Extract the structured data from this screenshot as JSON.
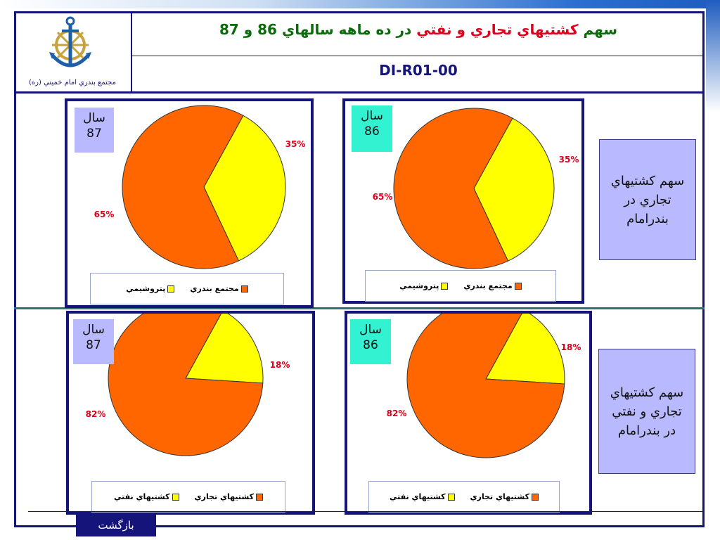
{
  "header": {
    "title_part1": "سهم ",
    "title_highlight": "كشتيهاي تجاري و نفتي",
    "title_part2": " در ده ماهه سالهاي 86 و 87",
    "code": "DI-R01-00",
    "logo_caption": "مجتمع بندري امام خميني (ره)"
  },
  "side_labels": {
    "top": "سهم كشتيهاي تجاري در بندرامام",
    "bottom": "سهم كشتيهاي تجاري و نفتي در بندرامام"
  },
  "back_label": "بازگشت",
  "colors": {
    "orange": "#ff6600",
    "yellow": "#ffff00",
    "navy": "#14147a",
    "year87": "#b9b9ff",
    "year86": "#33f2d2",
    "percent": "#e0001b"
  },
  "chart_data": [
    {
      "type": "pie",
      "year_label": "سال",
      "year": "87",
      "slices": [
        {
          "name": "مجتمع بندري",
          "value": 65,
          "label": "65%",
          "color": "#ff6600"
        },
        {
          "name": "پتروشيمي",
          "value": 35,
          "label": "35%",
          "color": "#ffff00"
        }
      ],
      "legend": [
        "مجتمع بندري",
        "پتروشيمي"
      ]
    },
    {
      "type": "pie",
      "year_label": "سال",
      "year": "86",
      "slices": [
        {
          "name": "مجتمع بندري",
          "value": 65,
          "label": "65%",
          "color": "#ff6600"
        },
        {
          "name": "پتروشيمي",
          "value": 35,
          "label": "35%",
          "color": "#ffff00"
        }
      ],
      "legend": [
        "مجتمع بندري",
        "پتروشيمي"
      ]
    },
    {
      "type": "pie",
      "year_label": "سال",
      "year": "87",
      "slices": [
        {
          "name": "كشتيهاي تجاري",
          "value": 82,
          "label": "82%",
          "color": "#ff6600"
        },
        {
          "name": "كشتيهاي نفتي",
          "value": 18,
          "label": "18%",
          "color": "#ffff00"
        }
      ],
      "legend": [
        "كشتيهاي تجاري",
        "كشتيهاي نفتي"
      ]
    },
    {
      "type": "pie",
      "year_label": "سال",
      "year": "86",
      "slices": [
        {
          "name": "كشتيهاي تجاري",
          "value": 82,
          "label": "82%",
          "color": "#ff6600"
        },
        {
          "name": "كشتيهاي نفتي",
          "value": 18,
          "label": "18%",
          "color": "#ffff00"
        }
      ],
      "legend": [
        "كشتيهاي تجاري",
        "كشتيهاي نفتي"
      ]
    }
  ]
}
